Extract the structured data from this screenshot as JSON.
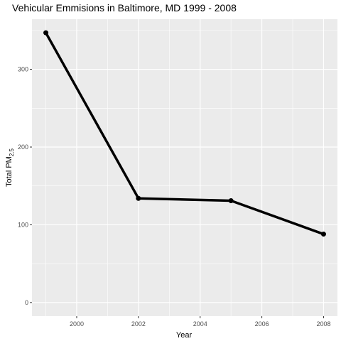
{
  "chart_data": {
    "type": "line",
    "title": "Vehicular Emmisions in Baltimore, MD 1999 - 2008",
    "xlabel": "Year",
    "ylabel": {
      "prefix": "Total PM",
      "subscript": "2.5"
    },
    "x": [
      1999,
      2002,
      2005,
      2008
    ],
    "values": [
      347,
      134,
      131,
      88
    ],
    "xlim": [
      1998.55,
      2008.45
    ],
    "ylim": [
      -17.5,
      364.5
    ],
    "xticks": [
      2000,
      2002,
      2004,
      2006,
      2008
    ],
    "yticks": [
      0,
      100,
      200,
      300
    ],
    "grid": true,
    "legend": "none",
    "colors": {
      "panel": "#ebebeb",
      "grid": "#ffffff",
      "line": "#000000",
      "tick_text": "#4d4d4d"
    }
  }
}
